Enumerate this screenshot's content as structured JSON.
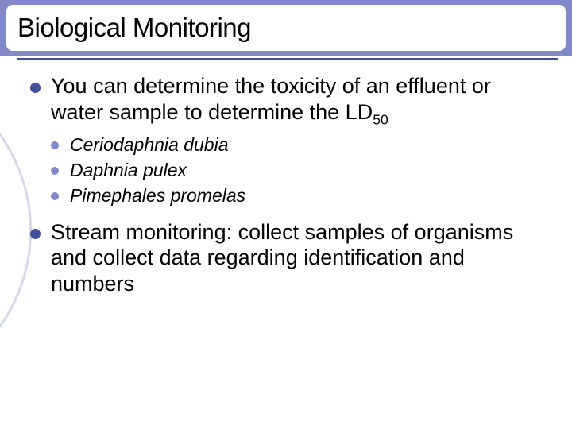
{
  "colors": {
    "header_band": "#8189c9",
    "title_box_bg": "#ffffff",
    "title_text": "#000000",
    "underline": "#42509c",
    "body_text": "#000000",
    "bullet_main": "#42509c",
    "bullet_sub": "#8189c9",
    "arc": "#d6d7e9",
    "background": "#ffffff"
  },
  "title": "Biological Monitoring",
  "main1": {
    "pre": "You can determine the toxicity of an effluent or water sample to  determine the LD",
    "subscript": "50"
  },
  "subs": {
    "a": "Ceriodaphnia dubia",
    "b": "Daphnia pulex",
    "c": "Pimephales promelas"
  },
  "main2": "Stream monitoring:  collect samples of organisms and collect data regarding identification and numbers"
}
